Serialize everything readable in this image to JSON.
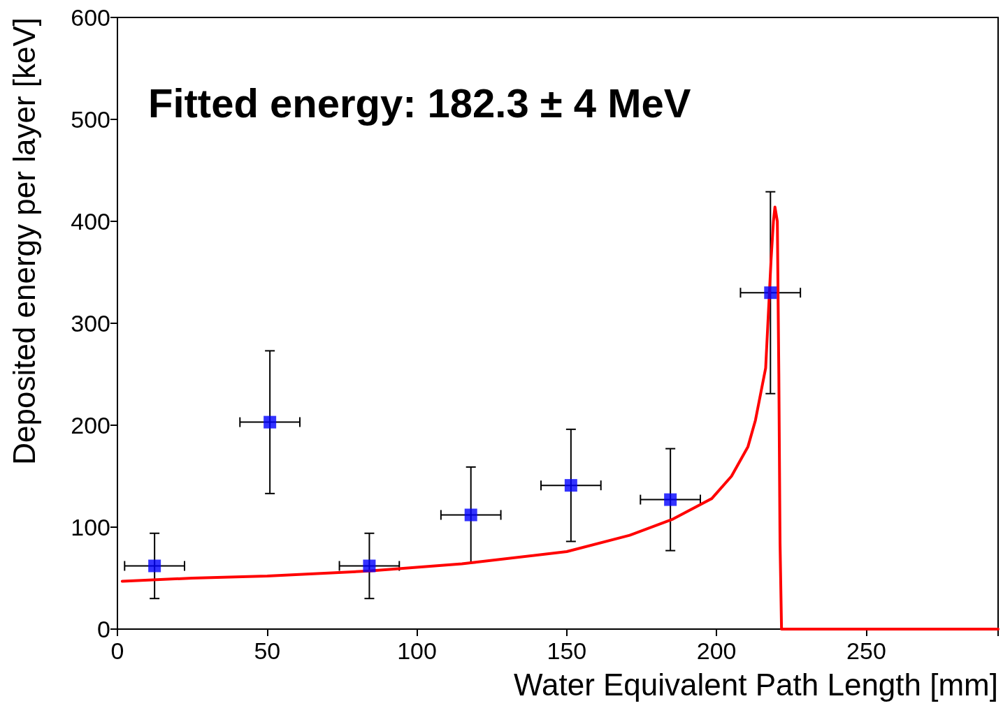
{
  "chart_data": {
    "type": "scatter",
    "xlabel": "Water Equivalent Path Length [mm]",
    "ylabel": "Deposited energy per layer [keV]",
    "annotations": [
      "Fitted energy: 182.3 ± 4 MeV"
    ],
    "xlim": [
      0,
      294
    ],
    "xticks": [
      0,
      50,
      100,
      150,
      200,
      250
    ],
    "ylim": [
      0,
      600
    ],
    "yticks": [
      0,
      100,
      200,
      300,
      400,
      500,
      600
    ],
    "grid": false,
    "series": [
      {
        "color": "#0000ff",
        "marker": "square",
        "x": [
          12.4,
          50.9,
          84.1,
          118,
          151.4,
          184.6,
          218
        ],
        "values": [
          62,
          203,
          62,
          112,
          141,
          127,
          330
        ],
        "errors": [
          32,
          70,
          32,
          47,
          55,
          50,
          99
        ],
        "xerrors": [
          10,
          10,
          10,
          10,
          10,
          10,
          10
        ]
      },
      {
        "type": "line",
        "color": "#ff0000",
        "marker": "none",
        "line_style": "solid",
        "x": [
          1.6,
          25,
          50,
          84,
          115,
          150,
          171,
          185.5,
          198.4,
          205,
          210.5,
          213,
          216.4,
          218.2,
          219,
          219.5,
          220.3,
          220.8,
          221.2,
          221.7,
          294
        ],
        "values": [
          47,
          50,
          52,
          57,
          64,
          76,
          92,
          108,
          128,
          150,
          179,
          205,
          256,
          362,
          400,
          414,
          400,
          250,
          85,
          0,
          0
        ]
      }
    ]
  }
}
